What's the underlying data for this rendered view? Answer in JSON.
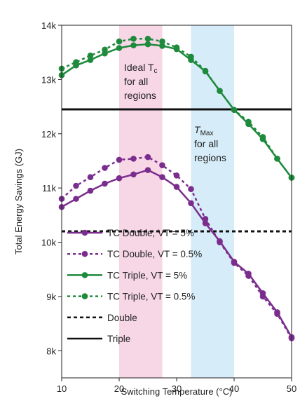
{
  "chart_data": {
    "type": "line",
    "xlabel": "Switching Temperature (°C)",
    "ylabel": "Total Energy Savings (GJ)",
    "xlim": [
      10,
      50
    ],
    "ylim": [
      7500,
      14000
    ],
    "xticks": [
      10,
      20,
      30,
      40,
      50
    ],
    "xtick_labels": [
      "10",
      "20",
      "30",
      "40",
      "50"
    ],
    "yticks": [
      8000,
      9000,
      10000,
      11000,
      12000,
      13000,
      14000
    ],
    "ytick_labels": [
      "8k",
      "9k",
      "10k",
      "11k",
      "12k",
      "13k",
      "14k"
    ],
    "grid": false,
    "legend_position": "bottom-left",
    "colors": {
      "purple": "#7b2d8e",
      "green": "#1e8a3c",
      "black": "#111111",
      "pink_band": "#f7d7e6",
      "blue_band": "#d6ecf8"
    },
    "bands": [
      {
        "x0": 20,
        "x1": 27.5,
        "color": "pink",
        "label_lines": [
          "Ideal T",
          "c",
          "for all",
          "regions"
        ]
      },
      {
        "x0": 32.5,
        "x1": 40,
        "color": "blue",
        "label_lines": [
          "T",
          "Max",
          "for all",
          "regions"
        ]
      }
    ],
    "hlines": [
      {
        "name": "Double",
        "y": 10200,
        "style": "dashed"
      },
      {
        "name": "Triple",
        "y": 12450,
        "style": "solid"
      }
    ],
    "x": [
      10,
      12.5,
      15,
      17.5,
      20,
      22.5,
      25,
      27.5,
      30,
      32.5,
      35,
      37.5,
      40,
      42.5,
      45,
      47.5,
      50
    ],
    "series": [
      {
        "name": "TC Double, VT = 5%",
        "color": "purple",
        "style": "solid",
        "values": [
          10650,
          10800,
          10950,
          11080,
          11180,
          11250,
          11330,
          11200,
          11020,
          10720,
          10350,
          10020,
          9640,
          9420,
          9060,
          8710,
          8250
        ]
      },
      {
        "name": "TC Double, VT = 0.5%",
        "color": "purple",
        "style": "dotted",
        "values": [
          10800,
          11040,
          11200,
          11370,
          11520,
          11540,
          11570,
          11420,
          11230,
          10980,
          10430,
          10000,
          9620,
          9380,
          9000,
          8680,
          8230
        ]
      },
      {
        "name": "TC Triple, VT = 5%",
        "color": "green",
        "style": "solid",
        "values": [
          13080,
          13260,
          13360,
          13480,
          13580,
          13630,
          13650,
          13620,
          13560,
          13360,
          13150,
          12790,
          12440,
          12180,
          11900,
          11540,
          11190
        ]
      },
      {
        "name": "TC Triple, VT = 0.5%",
        "color": "green",
        "style": "dotted",
        "values": [
          13200,
          13320,
          13440,
          13550,
          13700,
          13750,
          13750,
          13700,
          13590,
          13420,
          13160,
          12790,
          12440,
          12220,
          11940,
          11540,
          11190
        ]
      }
    ],
    "legend": [
      {
        "label": "TC Double, VT = 5%",
        "color": "purple",
        "style": "solid",
        "marker": true
      },
      {
        "label": "TC Double, VT = 0.5%",
        "color": "purple",
        "style": "dotted",
        "marker": true
      },
      {
        "label": "TC Triple, VT = 5%",
        "color": "green",
        "style": "solid",
        "marker": true
      },
      {
        "label": "TC Triple, VT = 0.5%",
        "color": "green",
        "style": "dotted",
        "marker": true
      },
      {
        "label": "Double",
        "color": "black",
        "style": "dashed",
        "marker": false
      },
      {
        "label": "Triple",
        "color": "black",
        "style": "solid",
        "marker": false
      }
    ]
  }
}
